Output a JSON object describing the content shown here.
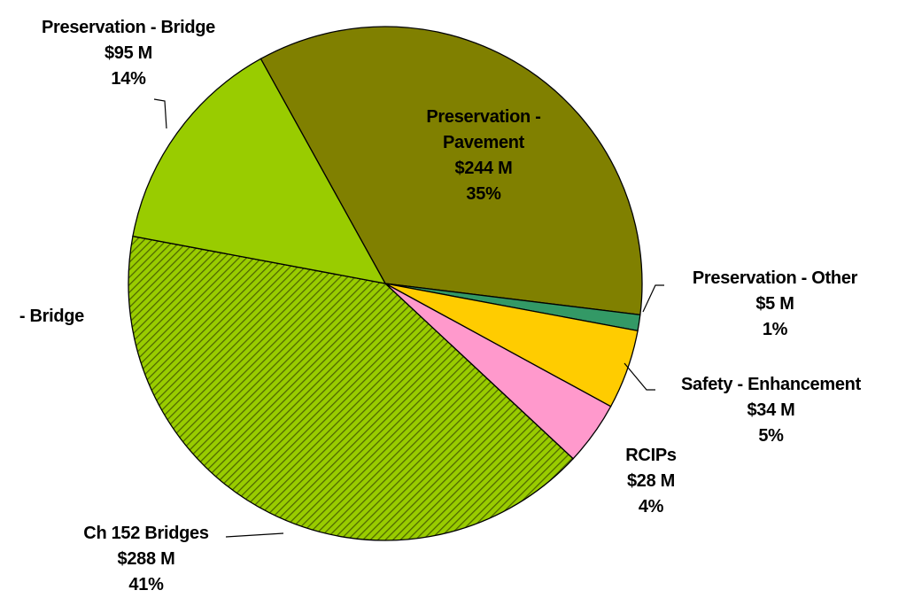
{
  "chart_data": {
    "type": "pie",
    "categories": [
      "Preservation - Pavement",
      "Preservation - Other",
      "Safety - Enhancement",
      "RCIPs",
      "Ch 152 Bridges",
      "- Bridge",
      "Preservation - Bridge"
    ],
    "values": [
      35,
      1,
      5,
      4,
      41,
      0,
      14
    ],
    "value_labels": [
      "35%",
      "1%",
      "5%",
      "4%",
      "41%",
      null,
      "14%"
    ],
    "amount_labels": [
      "$244 M",
      "$5 M",
      "$34 M",
      "$28 M",
      "$288 M",
      null,
      "$95 M"
    ],
    "colors": [
      "#808000",
      "#339966",
      "#ffcc00",
      "#ff99cc",
      "#99cc00",
      "#99cc00",
      "#99cc00"
    ],
    "hatched": [
      false,
      false,
      false,
      false,
      true,
      false,
      false
    ]
  }
}
